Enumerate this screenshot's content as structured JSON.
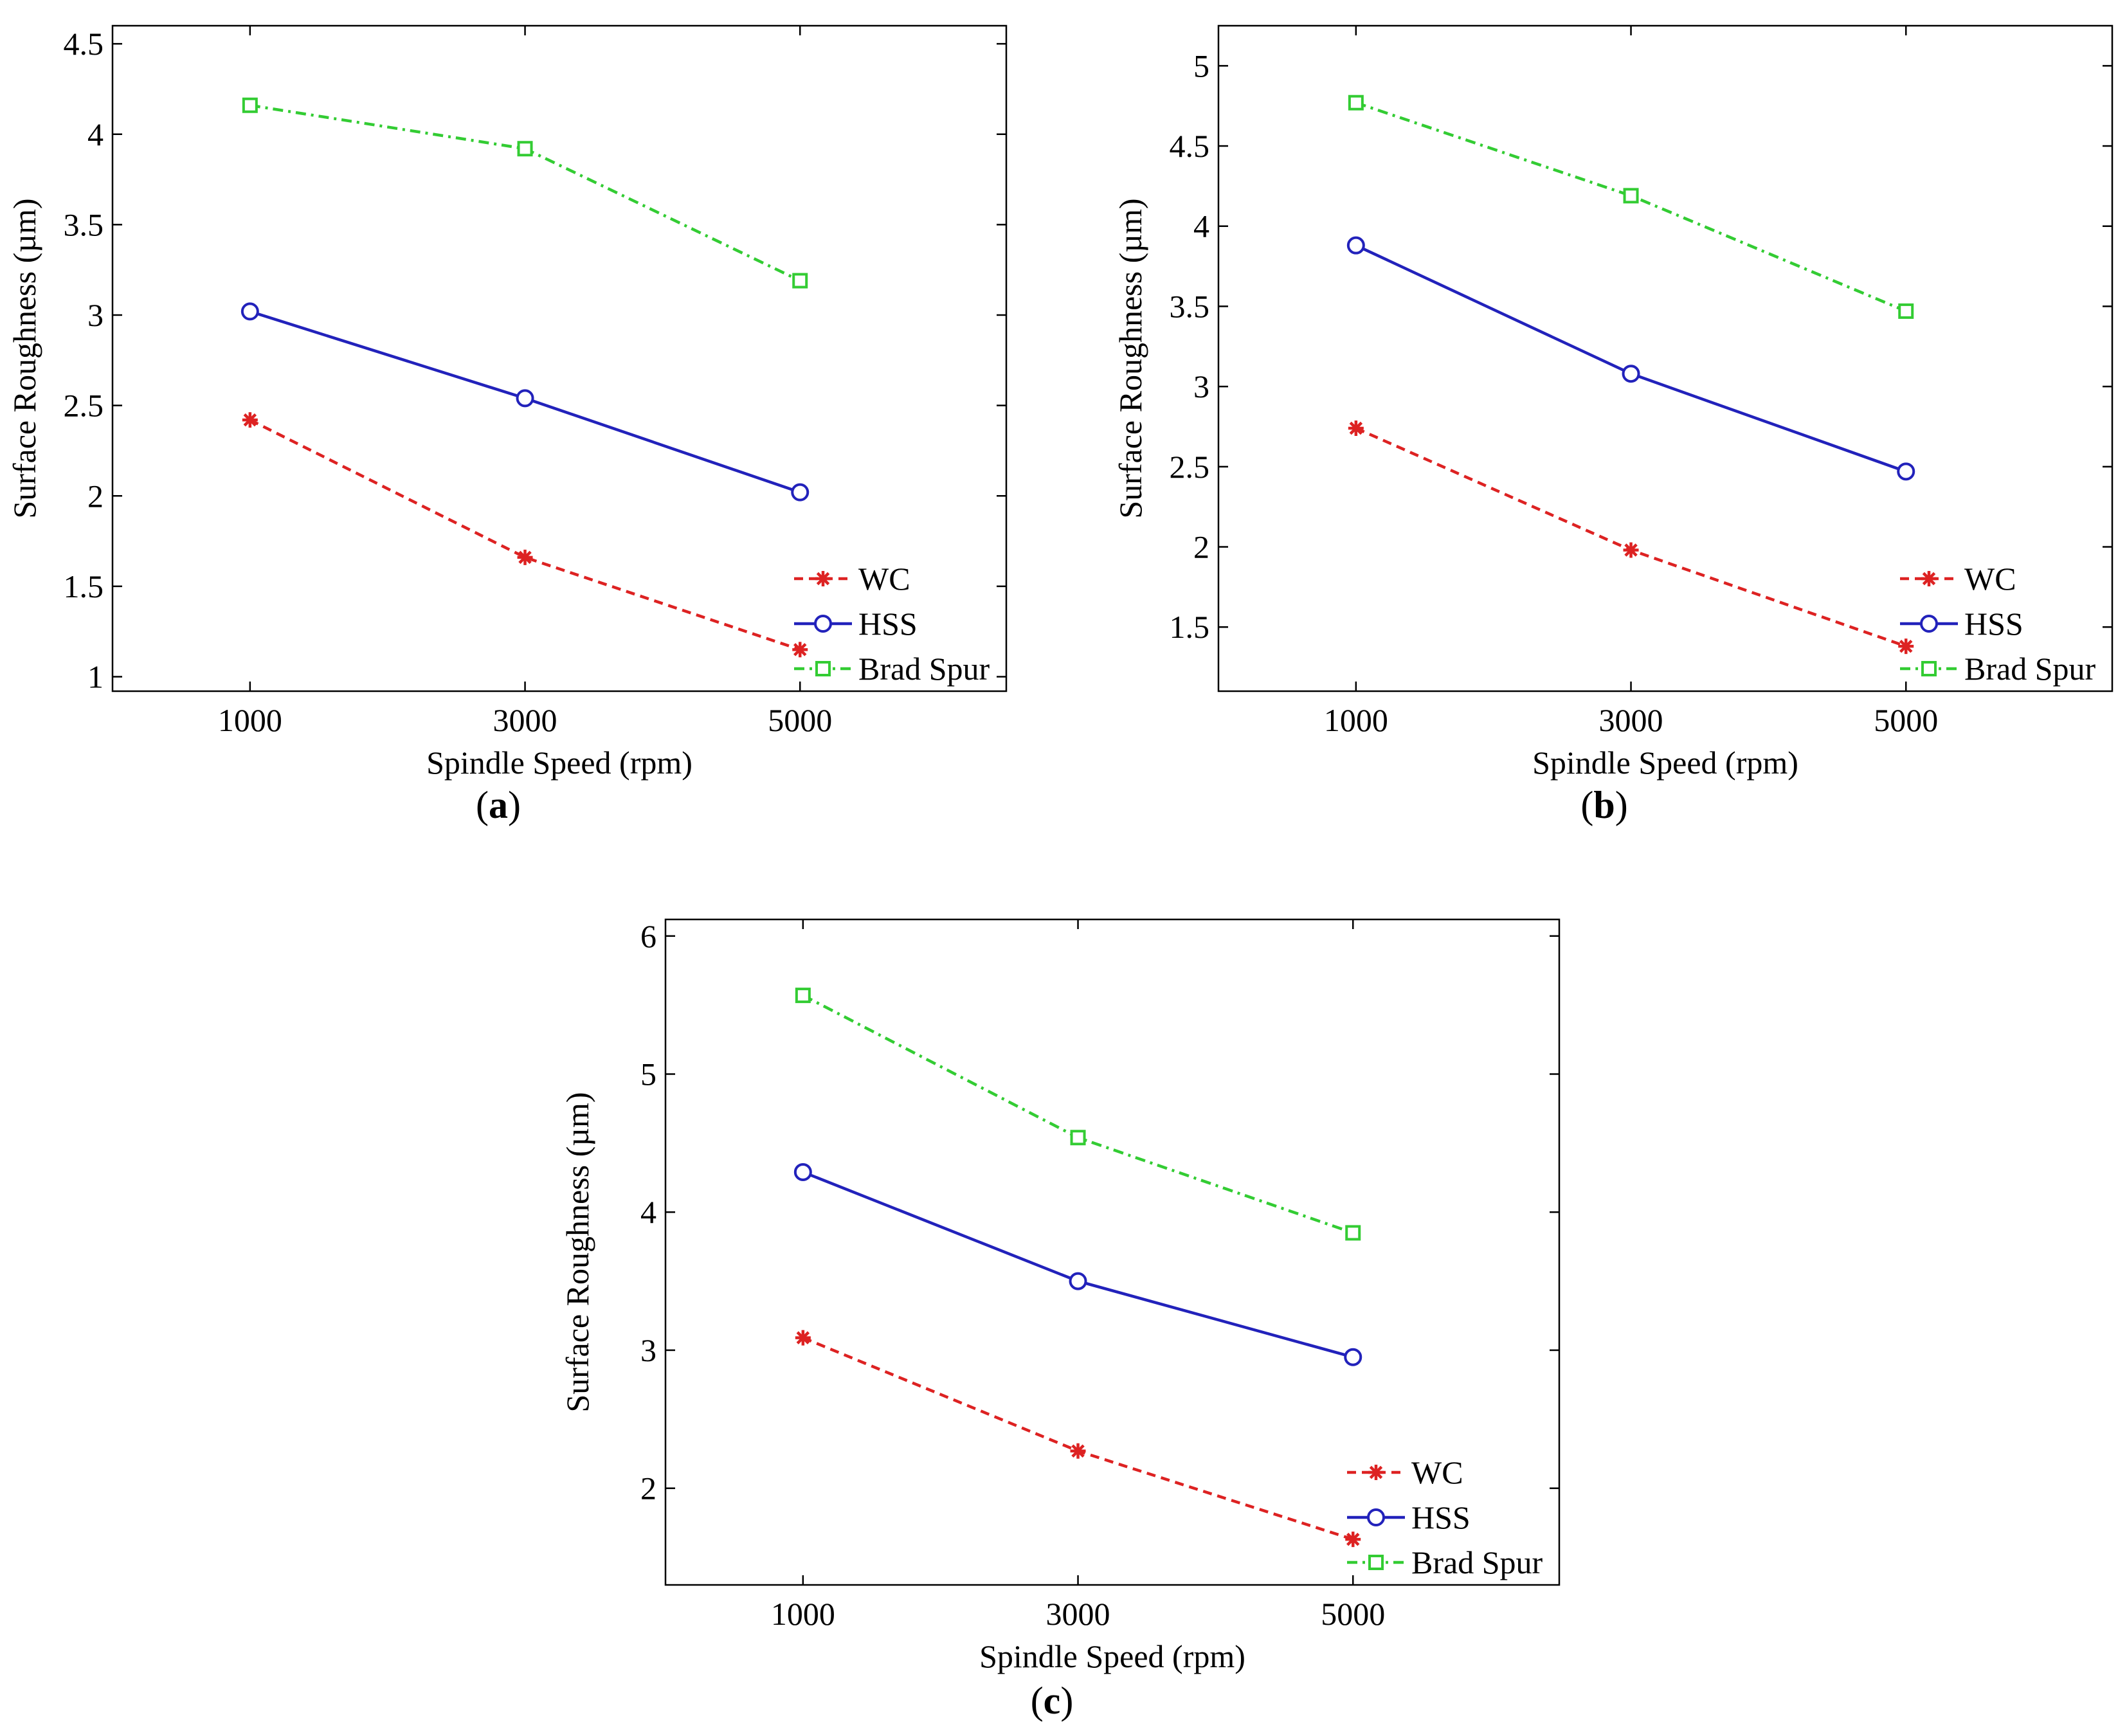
{
  "figure": {
    "panels": [
      "a",
      "b",
      "c"
    ]
  },
  "chart_data": [
    {
      "id": "a",
      "type": "line",
      "caption": "(a)",
      "caption_open": "(",
      "caption_letter": "a",
      "caption_close": ")",
      "xlabel": "Spindle Speed (rpm)",
      "ylabel": "Surface Roughness (µm)",
      "x": [
        1000,
        3000,
        5000
      ],
      "xlim": [
        0,
        6500
      ],
      "xticks": [
        1000,
        3000,
        5000
      ],
      "xtick_labels": [
        "1000",
        "3000",
        "5000"
      ],
      "ylim": [
        0.92,
        4.6
      ],
      "yticks": [
        1,
        1.5,
        2,
        2.5,
        3,
        3.5,
        4,
        4.5
      ],
      "ytick_labels": [
        "1",
        "1.5",
        "2",
        "2.5",
        "3",
        "3.5",
        "4",
        "4.5"
      ],
      "legend_position": "bottom-right",
      "series": [
        {
          "name": "WC",
          "values": [
            2.42,
            1.66,
            1.15
          ],
          "color": "#dd2222",
          "line": "dashed",
          "marker": "star"
        },
        {
          "name": "HSS",
          "values": [
            3.02,
            2.54,
            2.02
          ],
          "color": "#2222bb",
          "line": "solid",
          "marker": "circle"
        },
        {
          "name": "Brad Spur",
          "values": [
            4.16,
            3.92,
            3.19
          ],
          "color": "#33cc33",
          "line": "dashdot",
          "marker": "square"
        }
      ]
    },
    {
      "id": "b",
      "type": "line",
      "caption": "(b)",
      "caption_open": "(",
      "caption_letter": "b",
      "caption_close": ")",
      "xlabel": "Spindle Speed (rpm)",
      "ylabel": "Surface Roughness (µm)",
      "x": [
        1000,
        3000,
        5000
      ],
      "xlim": [
        0,
        6500
      ],
      "xticks": [
        1000,
        3000,
        5000
      ],
      "xtick_labels": [
        "1000",
        "3000",
        "5000"
      ],
      "ylim": [
        1.1,
        5.25
      ],
      "yticks": [
        1.5,
        2,
        2.5,
        3,
        3.5,
        4,
        4.5,
        5
      ],
      "ytick_labels": [
        "1.5",
        "2",
        "2.5",
        "3",
        "3.5",
        "4",
        "4.5",
        "5"
      ],
      "legend_position": "bottom-right",
      "series": [
        {
          "name": "WC",
          "values": [
            2.74,
            1.98,
            1.38
          ],
          "color": "#dd2222",
          "line": "dashed",
          "marker": "star"
        },
        {
          "name": "HSS",
          "values": [
            3.88,
            3.08,
            2.47
          ],
          "color": "#2222bb",
          "line": "solid",
          "marker": "circle"
        },
        {
          "name": "Brad Spur",
          "values": [
            4.77,
            4.19,
            3.47
          ],
          "color": "#33cc33",
          "line": "dashdot",
          "marker": "square"
        }
      ]
    },
    {
      "id": "c",
      "type": "line",
      "caption": "(c)",
      "caption_open": "(",
      "caption_letter": "c",
      "caption_close": ")",
      "xlabel": "Spindle Speed (rpm)",
      "ylabel": "Surface Roughness (µm)",
      "x": [
        1000,
        3000,
        5000
      ],
      "xlim": [
        0,
        6500
      ],
      "xticks": [
        1000,
        3000,
        5000
      ],
      "xtick_labels": [
        "1000",
        "3000",
        "5000"
      ],
      "ylim": [
        1.3,
        6.12
      ],
      "yticks": [
        2,
        3,
        4,
        5,
        6
      ],
      "ytick_labels": [
        "2",
        "3",
        "4",
        "5",
        "6"
      ],
      "legend_position": "bottom-right",
      "series": [
        {
          "name": "WC",
          "values": [
            3.09,
            2.27,
            1.63
          ],
          "color": "#dd2222",
          "line": "dashed",
          "marker": "star"
        },
        {
          "name": "HSS",
          "values": [
            4.29,
            3.5,
            2.95
          ],
          "color": "#2222bb",
          "line": "solid",
          "marker": "circle"
        },
        {
          "name": "Brad Spur",
          "values": [
            5.57,
            4.54,
            3.85
          ],
          "color": "#33cc33",
          "line": "dashdot",
          "marker": "square"
        }
      ]
    }
  ]
}
